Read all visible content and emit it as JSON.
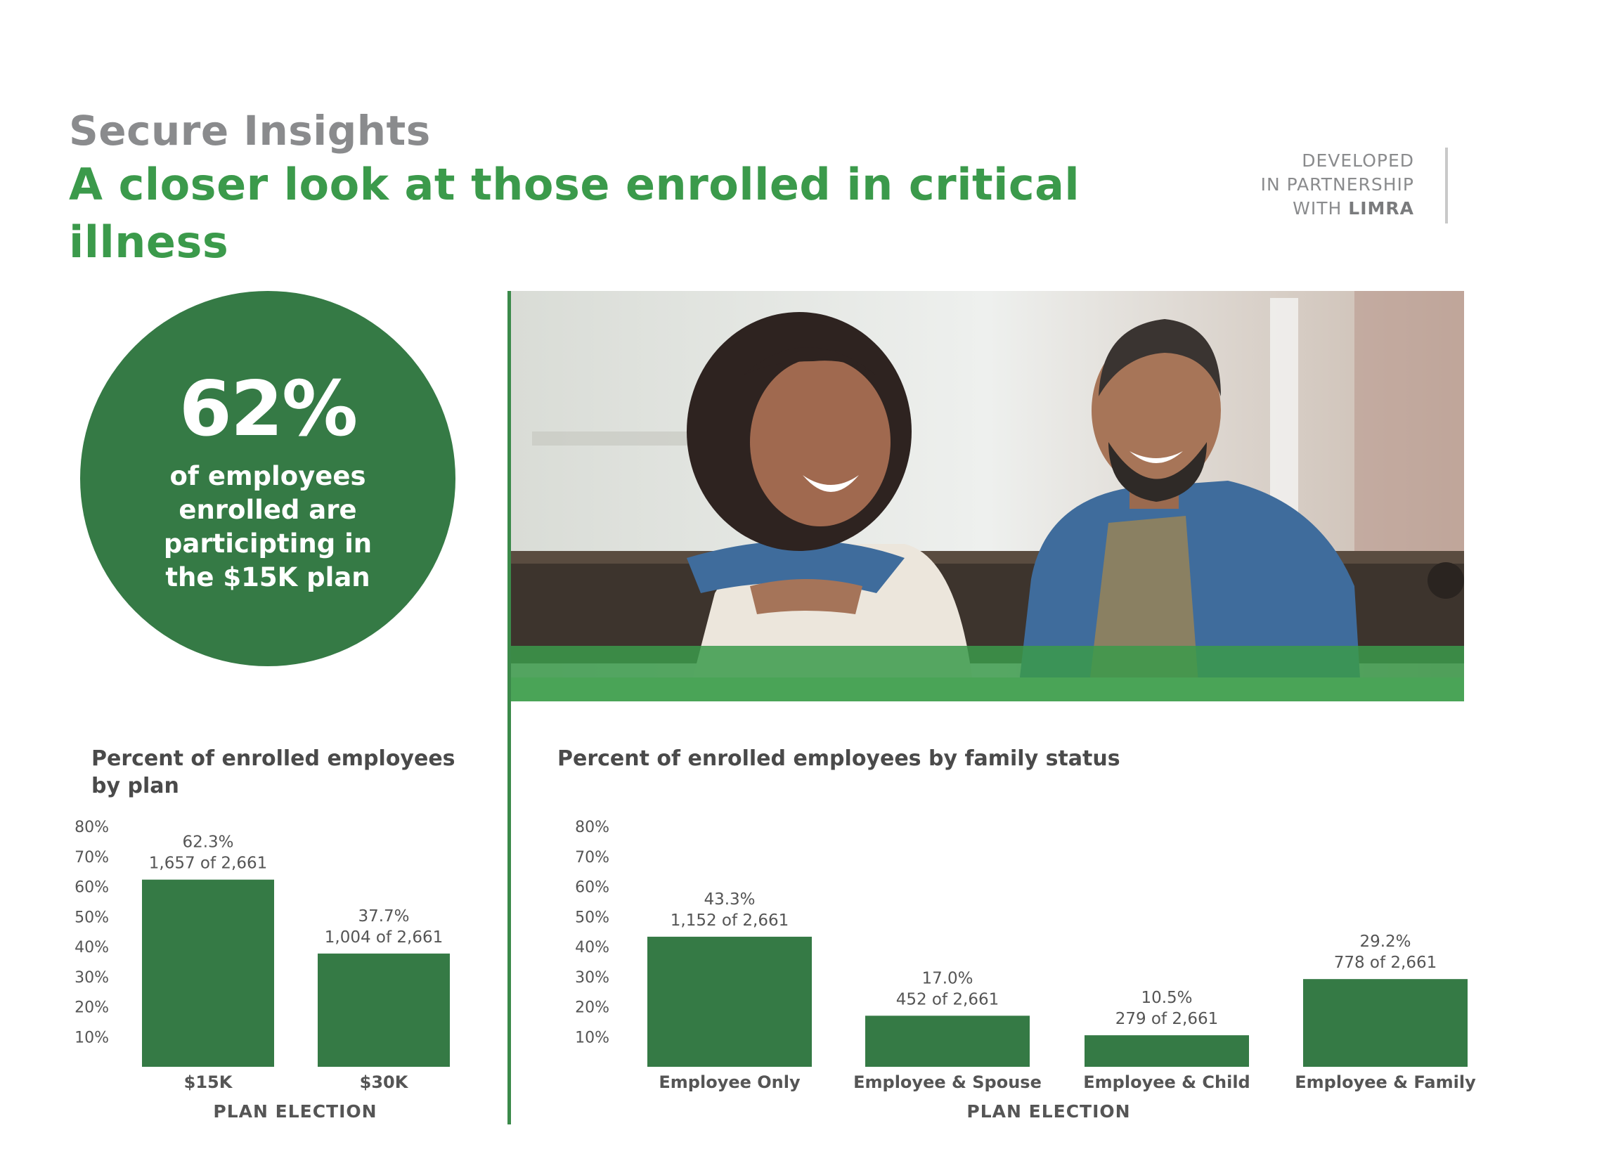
{
  "header": {
    "eyebrow": "Secure Insights",
    "headline": "A closer look at those enrolled in critical illness",
    "partner_line1": "DEVELOPED",
    "partner_line2": "IN PARTNERSHIP",
    "partner_line3_prefix": "WITH",
    "partner_brand": "LIMRA"
  },
  "stat": {
    "value": "62%",
    "caption": "of employees enrolled are participting in the $15K plan"
  },
  "photo": {
    "icon": "couple-photo"
  },
  "colors": {
    "bar": "#357a45",
    "accent_green": "#3b9a4b",
    "title_gray": "#8a8b8d"
  },
  "chart_data": [
    {
      "type": "bar",
      "title": "Percent of enrolled employees by plan",
      "xlabel": "PLAN ELECTION",
      "ylabel": "",
      "ylim": [
        0,
        80
      ],
      "yticks": [
        "80%",
        "70%",
        "60%",
        "50%",
        "40%",
        "30%",
        "20%",
        "10%"
      ],
      "categories": [
        "$15K",
        "$30K"
      ],
      "values": [
        62.3,
        37.7
      ],
      "value_labels": [
        "62.3%",
        "37.7%"
      ],
      "count_labels": [
        "1,657 of 2,661",
        "1,004 of 2,661"
      ],
      "grid": false
    },
    {
      "type": "bar",
      "title": "Percent of enrolled employees by family status",
      "xlabel": "PLAN ELECTION",
      "ylabel": "",
      "ylim": [
        0,
        80
      ],
      "yticks": [
        "80%",
        "70%",
        "60%",
        "50%",
        "40%",
        "30%",
        "20%",
        "10%"
      ],
      "categories": [
        "Employee Only",
        "Employee & Spouse",
        "Employee & Child",
        "Employee & Family"
      ],
      "values": [
        43.3,
        17.0,
        10.5,
        29.2
      ],
      "value_labels": [
        "43.3%",
        "17.0%",
        "10.5%",
        "29.2%"
      ],
      "count_labels": [
        "1,152 of 2,661",
        "452 of 2,661",
        "279 of 2,661",
        "778 of 2,661"
      ],
      "grid": false
    }
  ]
}
